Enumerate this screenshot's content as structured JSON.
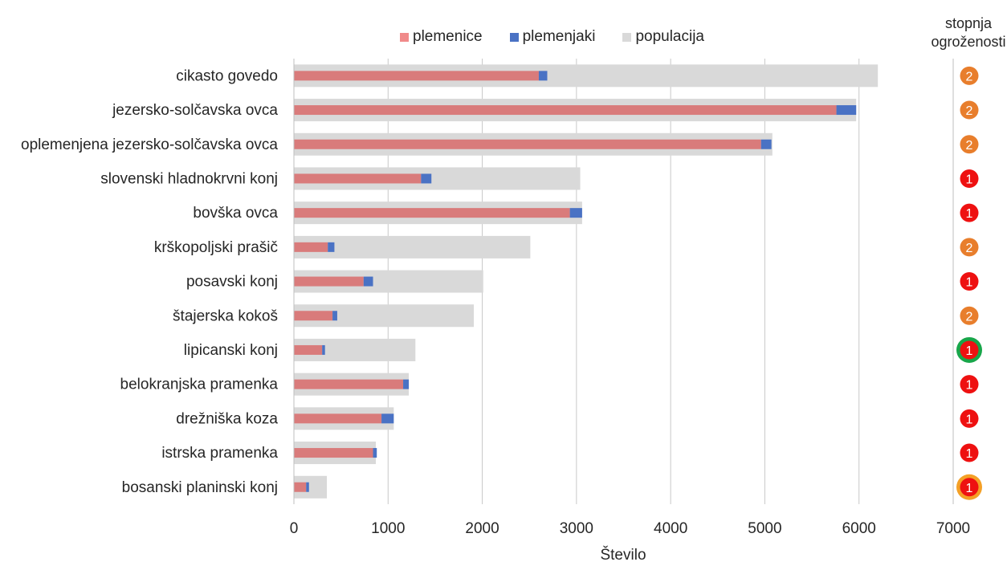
{
  "legend": {
    "breeding_females": "plemenice",
    "breeding_males": "plemenjaki",
    "population": "populacija"
  },
  "status_header": {
    "line1": "stopnja",
    "line2": "ogroženosti"
  },
  "colors": {
    "breeding_females": "#d97b7b",
    "breeding_males": "#4a72c4",
    "population": "#d9d9d9",
    "status_orange": "#e87e2c",
    "status_red": "#ee1111",
    "ring_green": "#18a64a",
    "ring_orange": "#f4a026",
    "axis": "#bfbfbf",
    "grid": "#c8c8c8"
  },
  "chart_data": {
    "type": "bar",
    "orientation": "horizontal",
    "stacked_over_background": true,
    "categories": [
      "cikasto govedo",
      "jezersko-solčavska ovca",
      "oplemenjena jezersko-solčavska ovca",
      "slovenski hladnokrvni konj",
      "bovška ovca",
      "krškopoljski prašič",
      "posavski konj",
      "štajerska kokoš",
      "lipicanski konj",
      "belokranjska pramenka",
      "drežniška koza",
      "istrska pramenka",
      "bosanski planinski konj"
    ],
    "series": [
      {
        "name": "plemenice",
        "values": [
          2600,
          5760,
          4960,
          1350,
          2930,
          360,
          740,
          410,
          300,
          1160,
          930,
          840,
          130
        ]
      },
      {
        "name": "plemenjaki",
        "values": [
          90,
          210,
          110,
          110,
          130,
          70,
          100,
          50,
          30,
          60,
          130,
          40,
          30
        ]
      },
      {
        "name": "populacija",
        "values": [
          6200,
          5970,
          5080,
          3040,
          3060,
          2510,
          2010,
          1910,
          1290,
          1220,
          1060,
          870,
          350
        ]
      }
    ],
    "endangerment_level": [
      2,
      2,
      2,
      1,
      1,
      2,
      1,
      2,
      1,
      1,
      1,
      1,
      1
    ],
    "endangerment_ring": [
      "",
      "",
      "",
      "",
      "",
      "",
      "",
      "",
      "green",
      "",
      "",
      "",
      "orange"
    ],
    "xlabel": "Število",
    "xlim": [
      0,
      7000
    ],
    "xticks": [
      0,
      1000,
      2000,
      3000,
      4000,
      5000,
      6000,
      7000
    ],
    "grid": "vertical"
  }
}
